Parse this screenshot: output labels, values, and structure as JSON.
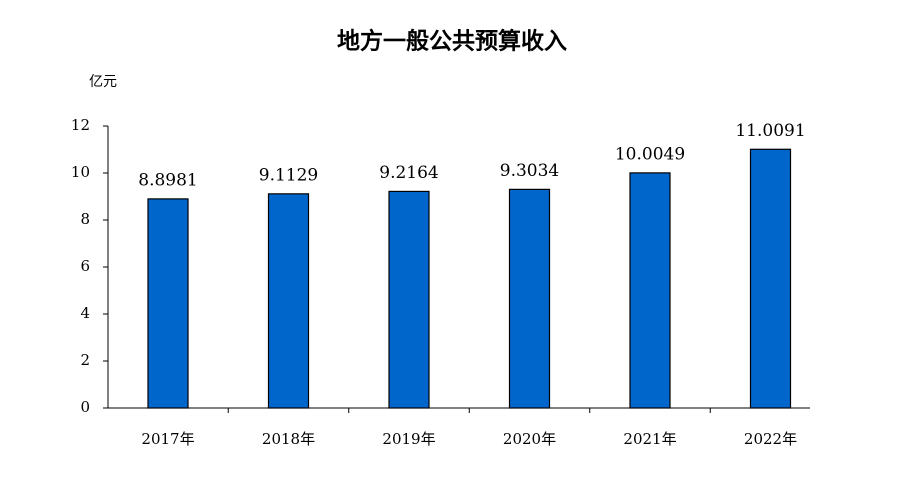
{
  "chart_data": {
    "type": "bar",
    "title": "地方一般公共预算收入",
    "y_unit": "亿元",
    "categories": [
      "2017年",
      "2018年",
      "2019年",
      "2020年",
      "2021年",
      "2022年"
    ],
    "values": [
      8.8981,
      9.1129,
      9.2164,
      9.3034,
      10.0049,
      11.0091
    ],
    "color": "#0066cc",
    "ylim": [
      0,
      12
    ],
    "yticks": [
      0,
      2,
      4,
      6,
      8,
      10,
      12
    ],
    "grid": false
  }
}
